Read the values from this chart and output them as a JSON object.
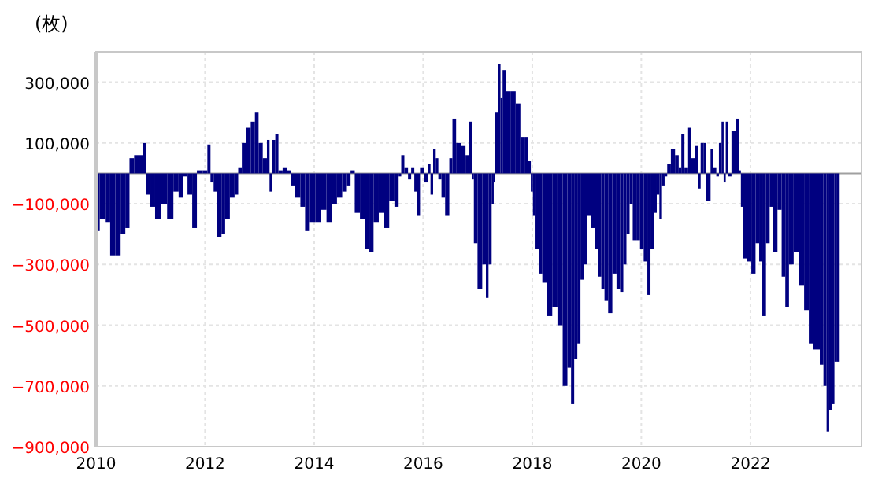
{
  "chart_data": {
    "type": "bar",
    "ylabel": "(枚)",
    "color": "#000080",
    "grid": true,
    "xlim": [
      "2010",
      "2024-01-15"
    ],
    "ylim": [
      -900000,
      400000
    ],
    "xticks": [
      "2010",
      "2012",
      "2014",
      "2016",
      "2018",
      "2020",
      "2022"
    ],
    "yticks": [
      {
        "value": 300000,
        "label": "300,000"
      },
      {
        "value": 100000,
        "label": "100,000"
      },
      {
        "value": -100000,
        "label": "−100,000"
      },
      {
        "value": -300000,
        "label": "−300,000"
      },
      {
        "value": -500000,
        "label": "−500,000"
      },
      {
        "value": -700000,
        "label": "−700,000"
      },
      {
        "value": -900000,
        "label": "−900,000"
      }
    ],
    "ref_lines": [
      {
        "axis": "y",
        "value": 0,
        "color": "#a0a0a0"
      }
    ],
    "x": [
      "2010-01-08",
      "2010-02-12",
      "2010-03-19",
      "2010-04-23",
      "2010-05-28",
      "2010-07-02",
      "2010-07-30",
      "2010-08-27",
      "2010-09-30",
      "2010-10-29",
      "2010-11-19",
      "2010-12-17",
      "2011-01-14",
      "2011-02-18",
      "2011-04-01",
      "2011-05-13",
      "2011-06-24",
      "2011-07-22",
      "2011-08-19",
      "2011-09-23",
      "2011-10-21",
      "2011-11-25",
      "2012-01-06",
      "2012-01-27",
      "2012-02-17",
      "2012-03-09",
      "2012-04-06",
      "2012-05-04",
      "2012-05-25",
      "2012-07-06",
      "2012-07-27",
      "2012-08-24",
      "2012-09-14",
      "2012-10-19",
      "2012-11-16",
      "2012-12-14",
      "2013-01-04",
      "2013-02-08",
      "2013-03-01",
      "2013-03-15",
      "2013-04-05",
      "2013-04-26",
      "2013-05-17",
      "2013-06-21",
      "2013-07-19",
      "2013-08-09",
      "2013-09-13",
      "2013-10-18",
      "2013-11-15",
      "2013-12-20",
      "2014-01-31",
      "2014-03-07",
      "2014-04-11",
      "2014-05-16",
      "2014-06-20",
      "2014-07-25",
      "2014-08-22",
      "2014-09-12",
      "2014-10-17",
      "2014-11-21",
      "2014-12-26",
      "2015-01-16",
      "2015-02-20",
      "2015-03-27",
      "2015-05-01",
      "2015-06-05",
      "2015-07-10",
      "2015-07-31",
      "2015-08-14",
      "2015-09-11",
      "2015-10-02",
      "2015-10-23",
      "2015-11-13",
      "2015-11-27",
      "2015-12-25",
      "2016-01-22",
      "2016-02-12",
      "2016-02-26",
      "2016-03-18",
      "2016-04-01",
      "2016-04-22",
      "2016-05-13",
      "2016-06-10",
      "2016-07-08",
      "2016-07-22",
      "2016-08-26",
      "2016-09-30",
      "2016-10-21",
      "2016-11-18",
      "2016-11-25",
      "2016-12-16",
      "2017-01-13",
      "2017-02-17",
      "2017-03-03",
      "2017-03-24",
      "2017-04-14",
      "2017-04-21",
      "2017-05-05",
      "2017-05-26",
      "2017-06-09",
      "2017-06-23",
      "2017-07-21",
      "2017-08-25",
      "2017-09-29",
      "2017-10-27",
      "2017-11-24",
      "2017-12-15",
      "2017-12-29",
      "2018-01-12",
      "2018-02-02",
      "2018-02-23",
      "2018-03-23",
      "2018-04-27",
      "2018-06-01",
      "2018-07-06",
      "2018-08-10",
      "2018-09-07",
      "2018-09-28",
      "2018-10-19",
      "2018-11-09",
      "2018-11-30",
      "2018-12-21",
      "2019-01-18",
      "2019-02-08",
      "2019-03-08",
      "2019-03-29",
      "2019-04-19",
      "2019-05-10",
      "2019-06-07",
      "2019-07-05",
      "2019-08-02",
      "2019-08-23",
      "2019-09-13",
      "2019-10-04",
      "2019-10-25",
      "2019-11-15",
      "2019-12-13",
      "2020-01-03",
      "2020-01-31",
      "2020-02-21",
      "2020-03-13",
      "2020-04-03",
      "2020-04-24",
      "2020-05-08",
      "2020-05-29",
      "2020-06-12",
      "2020-07-03",
      "2020-07-31",
      "2020-08-28",
      "2020-09-18",
      "2020-10-02",
      "2020-10-30",
      "2020-11-20",
      "2020-12-11",
      "2021-01-08",
      "2021-01-22",
      "2021-02-12",
      "2021-03-05",
      "2021-03-12",
      "2021-04-02",
      "2021-04-16",
      "2021-05-07",
      "2021-05-28",
      "2021-06-11",
      "2021-07-02",
      "2021-07-09",
      "2021-07-30",
      "2021-08-13",
      "2021-09-10",
      "2021-10-08",
      "2021-10-22",
      "2021-11-05",
      "2021-11-19",
      "2021-12-24",
      "2022-01-21",
      "2022-02-18",
      "2022-03-11",
      "2022-04-01",
      "2022-04-29",
      "2022-05-20",
      "2022-06-17",
      "2022-07-15",
      "2022-08-12",
      "2022-09-02",
      "2022-09-30",
      "2022-11-04",
      "2022-12-09",
      "2023-01-13",
      "2023-02-10",
      "2023-03-10",
      "2023-03-31",
      "2023-04-21",
      "2023-05-19",
      "2023-06-02",
      "2023-06-23",
      "2023-07-07",
      "2023-07-28",
      "2023-08-11"
    ],
    "values": [
      -190000,
      -150000,
      -160000,
      -270000,
      -270000,
      -200000,
      -180000,
      50000,
      60000,
      60000,
      100000,
      -70000,
      -110000,
      -150000,
      -100000,
      -150000,
      -60000,
      -80000,
      -10000,
      -70000,
      -180000,
      10000,
      10000,
      95000,
      -30000,
      -60000,
      -210000,
      -200000,
      -150000,
      -80000,
      -70000,
      20000,
      100000,
      150000,
      170000,
      200000,
      100000,
      50000,
      110000,
      -60000,
      110000,
      130000,
      10000,
      20000,
      10000,
      -40000,
      -80000,
      -110000,
      -190000,
      -160000,
      -160000,
      -120000,
      -160000,
      -100000,
      -80000,
      -60000,
      -40000,
      10000,
      -130000,
      -150000,
      -250000,
      -260000,
      -160000,
      -130000,
      -180000,
      -90000,
      -110000,
      -10000,
      60000,
      20000,
      -20000,
      20000,
      -60000,
      -140000,
      20000,
      -30000,
      30000,
      -70000,
      80000,
      50000,
      -20000,
      -80000,
      -140000,
      50000,
      180000,
      100000,
      90000,
      60000,
      170000,
      -20000,
      -230000,
      -380000,
      -300000,
      -410000,
      -300000,
      -100000,
      -30000,
      200000,
      360000,
      250000,
      340000,
      270000,
      270000,
      230000,
      120000,
      120000,
      40000,
      -60000,
      -140000,
      -250000,
      -330000,
      -360000,
      -470000,
      -440000,
      -500000,
      -700000,
      -640000,
      -760000,
      -610000,
      -560000,
      -350000,
      -300000,
      -140000,
      -180000,
      -250000,
      -340000,
      -380000,
      -420000,
      -460000,
      -330000,
      -380000,
      -390000,
      -300000,
      -200000,
      -100000,
      -220000,
      -220000,
      -250000,
      -290000,
      -400000,
      -250000,
      -130000,
      -70000,
      -150000,
      -40000,
      -10000,
      30000,
      80000,
      60000,
      20000,
      130000,
      20000,
      150000,
      50000,
      90000,
      -50000,
      100000,
      100000,
      -90000,
      -90000,
      80000,
      20000,
      -10000,
      100000,
      170000,
      -30000,
      170000,
      -10000,
      140000,
      180000,
      10000,
      -110000,
      -280000,
      -290000,
      -330000,
      -230000,
      -290000,
      -470000,
      -230000,
      -110000,
      -260000,
      -120000,
      -340000,
      -440000,
      -300000,
      -260000,
      -370000,
      -450000,
      -560000,
      -580000,
      -580000,
      -630000,
      -700000,
      -850000,
      -780000,
      -760000,
      -620000,
      -620000
    ]
  }
}
